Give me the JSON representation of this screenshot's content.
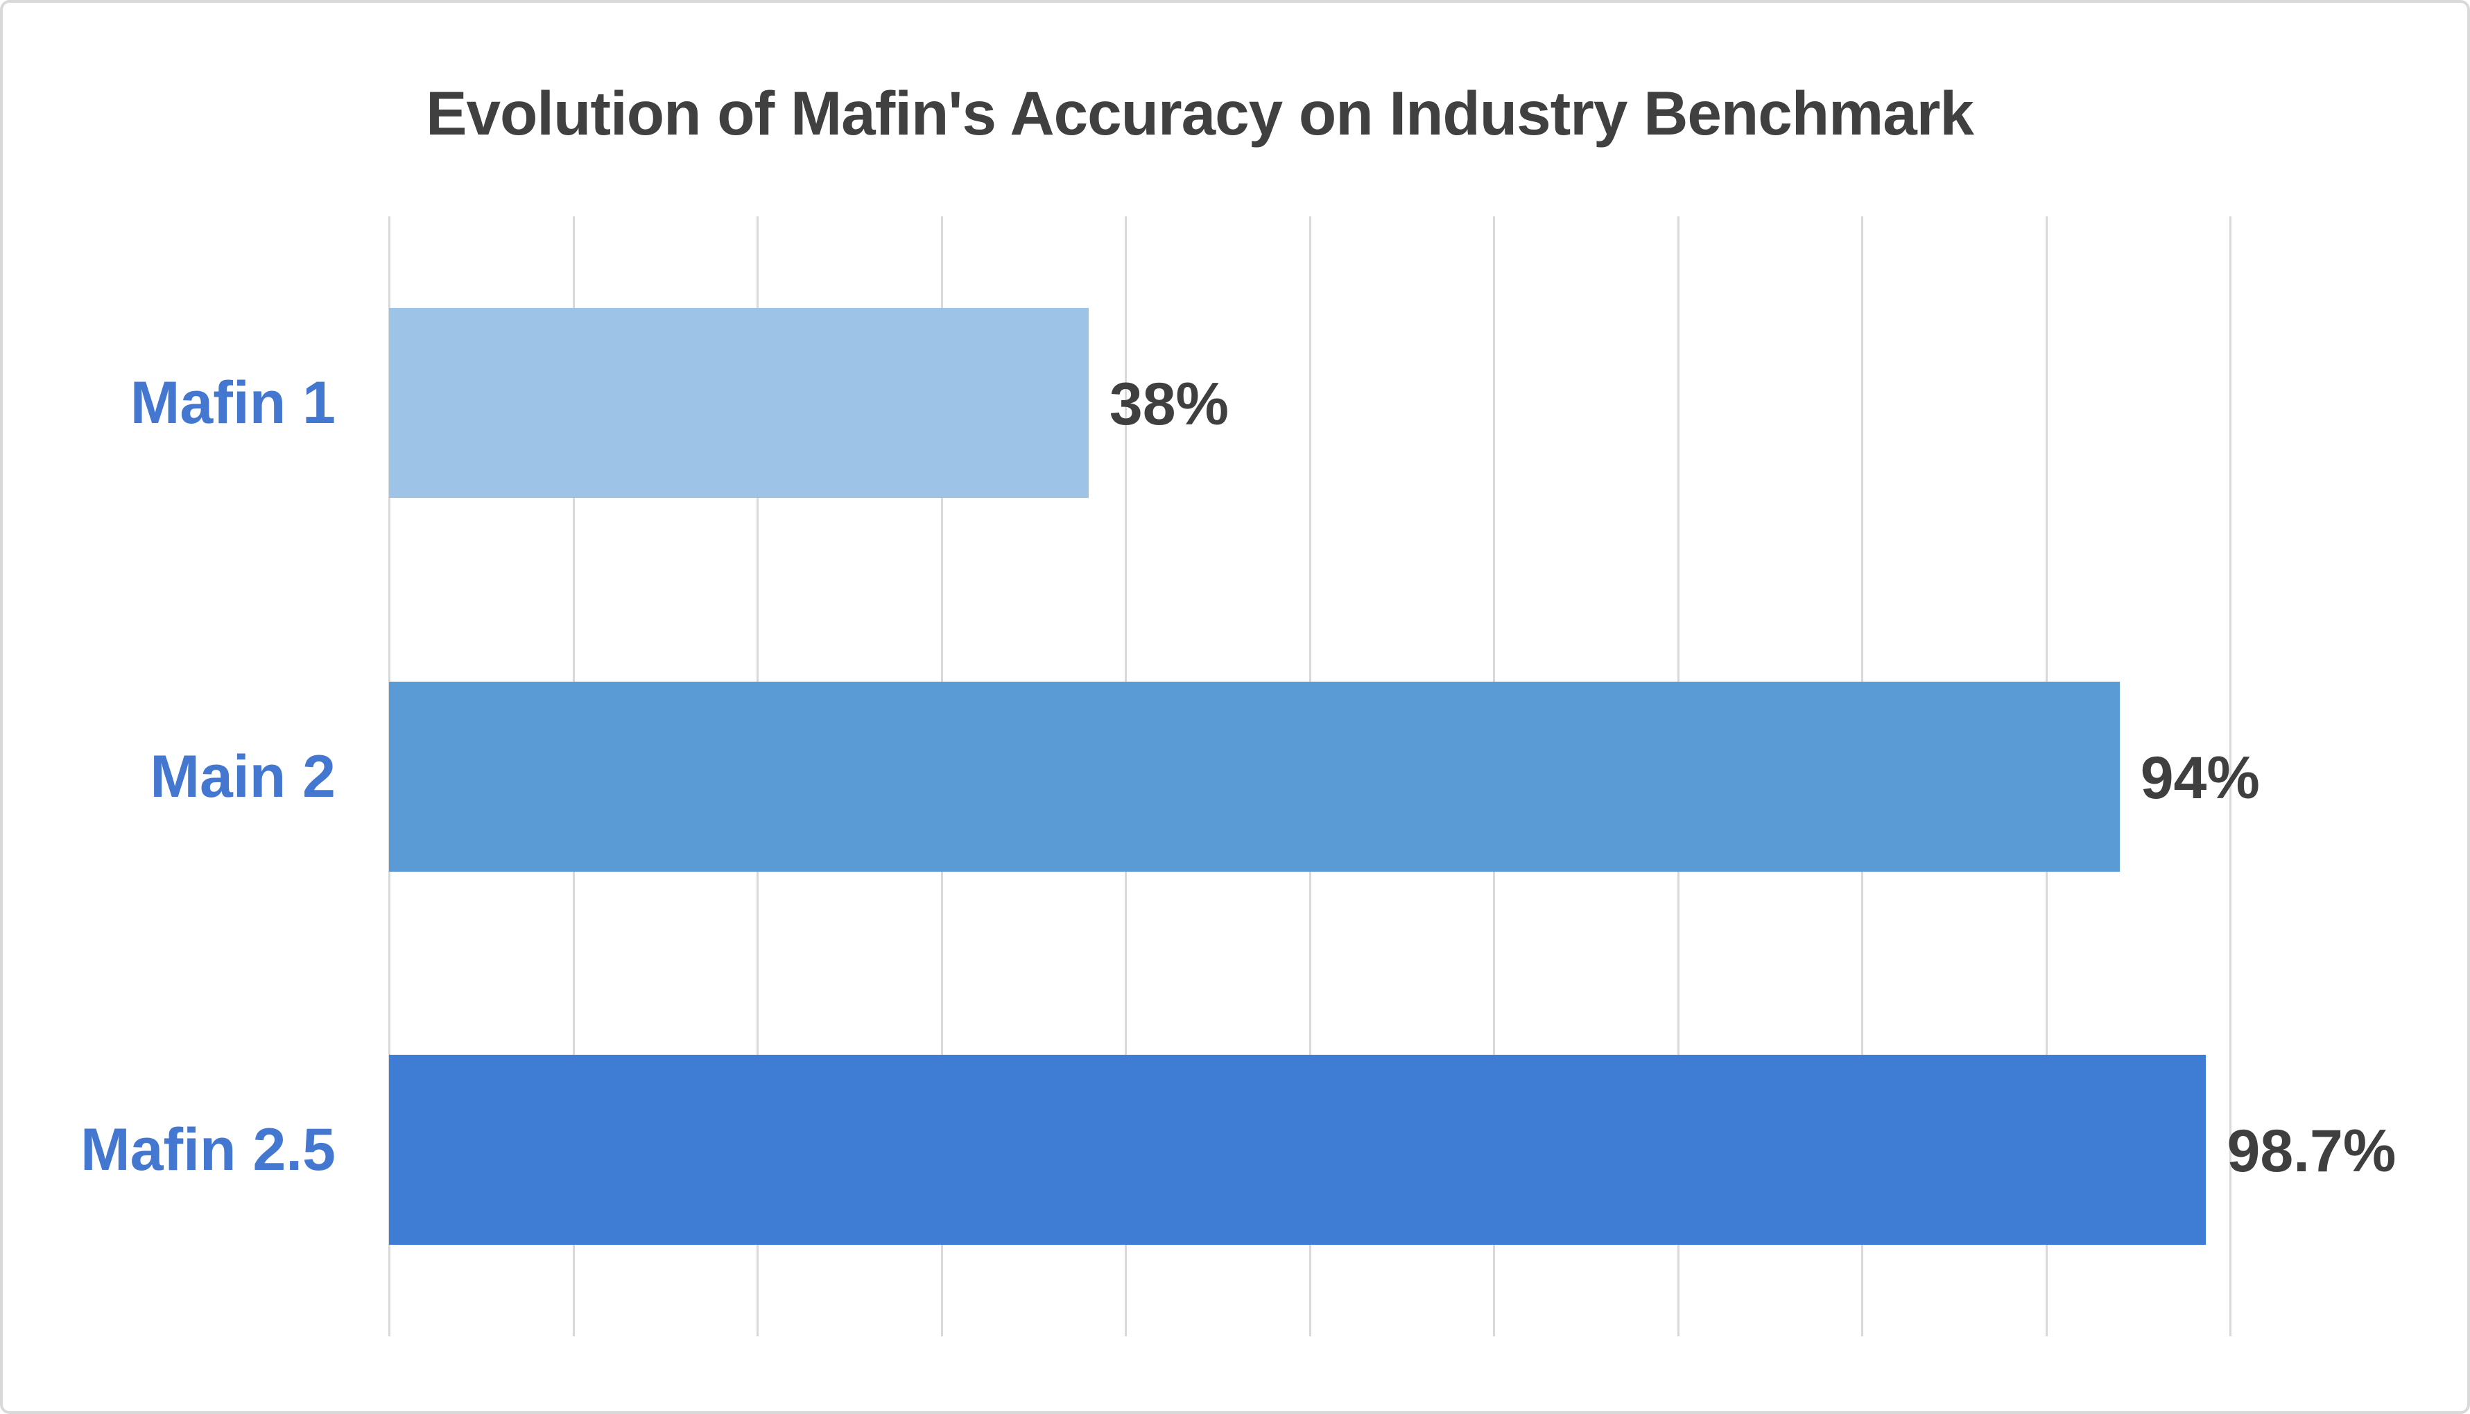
{
  "chart_data": {
    "type": "bar",
    "orientation": "horizontal",
    "title": "Evolution of Mafin's Accuracy on Industry Benchmark",
    "categories": [
      "Mafin 1",
      "Main 2",
      "Mafin 2.5"
    ],
    "values": [
      38,
      94,
      98.7
    ],
    "value_labels": [
      "38%",
      "94%",
      "98.7%"
    ],
    "xlabel": "",
    "ylabel": "",
    "xlim": [
      0,
      100
    ],
    "x_tick_step": 10,
    "grid": true,
    "legend": false,
    "axis_tick_labels_visible": false,
    "bar_colors": [
      "#9DC3E6",
      "#5B9BD5",
      "#3F7CD4"
    ],
    "category_label_color": "#4377D0",
    "value_label_color": "#3F3F3F",
    "title_color": "#404040",
    "gridline_color": "#D9D9D9",
    "frame_color": "#D9D9D9",
    "background_color": "#FFFFFF"
  }
}
